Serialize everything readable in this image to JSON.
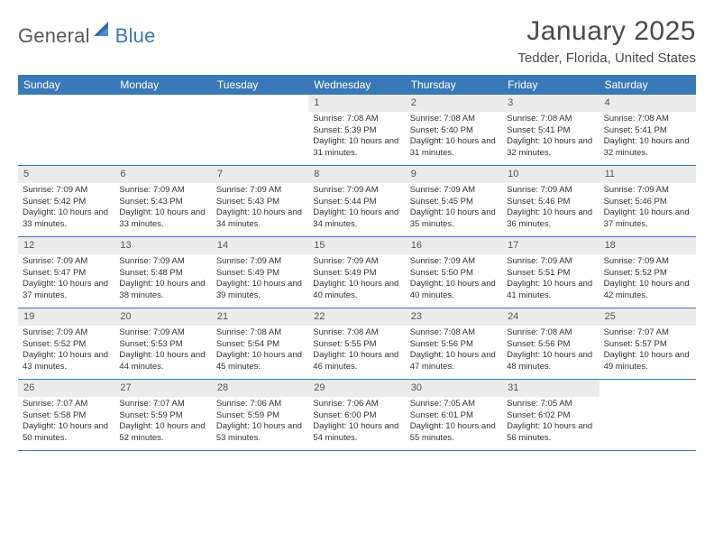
{
  "logo": {
    "general": "General",
    "blue": "Blue"
  },
  "title": "January 2025",
  "location": "Tedder, Florida, United States",
  "header_bg": "#3a79b7",
  "weekdays": [
    "Sunday",
    "Monday",
    "Tuesday",
    "Wednesday",
    "Thursday",
    "Friday",
    "Saturday"
  ],
  "weeks": [
    [
      {
        "n": "",
        "sr": "",
        "ss": "",
        "dl": ""
      },
      {
        "n": "",
        "sr": "",
        "ss": "",
        "dl": ""
      },
      {
        "n": "",
        "sr": "",
        "ss": "",
        "dl": ""
      },
      {
        "n": "1",
        "sr": "Sunrise: 7:08 AM",
        "ss": "Sunset: 5:39 PM",
        "dl": "Daylight: 10 hours and 31 minutes."
      },
      {
        "n": "2",
        "sr": "Sunrise: 7:08 AM",
        "ss": "Sunset: 5:40 PM",
        "dl": "Daylight: 10 hours and 31 minutes."
      },
      {
        "n": "3",
        "sr": "Sunrise: 7:08 AM",
        "ss": "Sunset: 5:41 PM",
        "dl": "Daylight: 10 hours and 32 minutes."
      },
      {
        "n": "4",
        "sr": "Sunrise: 7:08 AM",
        "ss": "Sunset: 5:41 PM",
        "dl": "Daylight: 10 hours and 32 minutes."
      }
    ],
    [
      {
        "n": "5",
        "sr": "Sunrise: 7:09 AM",
        "ss": "Sunset: 5:42 PM",
        "dl": "Daylight: 10 hours and 33 minutes."
      },
      {
        "n": "6",
        "sr": "Sunrise: 7:09 AM",
        "ss": "Sunset: 5:43 PM",
        "dl": "Daylight: 10 hours and 33 minutes."
      },
      {
        "n": "7",
        "sr": "Sunrise: 7:09 AM",
        "ss": "Sunset: 5:43 PM",
        "dl": "Daylight: 10 hours and 34 minutes."
      },
      {
        "n": "8",
        "sr": "Sunrise: 7:09 AM",
        "ss": "Sunset: 5:44 PM",
        "dl": "Daylight: 10 hours and 34 minutes."
      },
      {
        "n": "9",
        "sr": "Sunrise: 7:09 AM",
        "ss": "Sunset: 5:45 PM",
        "dl": "Daylight: 10 hours and 35 minutes."
      },
      {
        "n": "10",
        "sr": "Sunrise: 7:09 AM",
        "ss": "Sunset: 5:46 PM",
        "dl": "Daylight: 10 hours and 36 minutes."
      },
      {
        "n": "11",
        "sr": "Sunrise: 7:09 AM",
        "ss": "Sunset: 5:46 PM",
        "dl": "Daylight: 10 hours and 37 minutes."
      }
    ],
    [
      {
        "n": "12",
        "sr": "Sunrise: 7:09 AM",
        "ss": "Sunset: 5:47 PM",
        "dl": "Daylight: 10 hours and 37 minutes."
      },
      {
        "n": "13",
        "sr": "Sunrise: 7:09 AM",
        "ss": "Sunset: 5:48 PM",
        "dl": "Daylight: 10 hours and 38 minutes."
      },
      {
        "n": "14",
        "sr": "Sunrise: 7:09 AM",
        "ss": "Sunset: 5:49 PM",
        "dl": "Daylight: 10 hours and 39 minutes."
      },
      {
        "n": "15",
        "sr": "Sunrise: 7:09 AM",
        "ss": "Sunset: 5:49 PM",
        "dl": "Daylight: 10 hours and 40 minutes."
      },
      {
        "n": "16",
        "sr": "Sunrise: 7:09 AM",
        "ss": "Sunset: 5:50 PM",
        "dl": "Daylight: 10 hours and 40 minutes."
      },
      {
        "n": "17",
        "sr": "Sunrise: 7:09 AM",
        "ss": "Sunset: 5:51 PM",
        "dl": "Daylight: 10 hours and 41 minutes."
      },
      {
        "n": "18",
        "sr": "Sunrise: 7:09 AM",
        "ss": "Sunset: 5:52 PM",
        "dl": "Daylight: 10 hours and 42 minutes."
      }
    ],
    [
      {
        "n": "19",
        "sr": "Sunrise: 7:09 AM",
        "ss": "Sunset: 5:52 PM",
        "dl": "Daylight: 10 hours and 43 minutes."
      },
      {
        "n": "20",
        "sr": "Sunrise: 7:09 AM",
        "ss": "Sunset: 5:53 PM",
        "dl": "Daylight: 10 hours and 44 minutes."
      },
      {
        "n": "21",
        "sr": "Sunrise: 7:08 AM",
        "ss": "Sunset: 5:54 PM",
        "dl": "Daylight: 10 hours and 45 minutes."
      },
      {
        "n": "22",
        "sr": "Sunrise: 7:08 AM",
        "ss": "Sunset: 5:55 PM",
        "dl": "Daylight: 10 hours and 46 minutes."
      },
      {
        "n": "23",
        "sr": "Sunrise: 7:08 AM",
        "ss": "Sunset: 5:56 PM",
        "dl": "Daylight: 10 hours and 47 minutes."
      },
      {
        "n": "24",
        "sr": "Sunrise: 7:08 AM",
        "ss": "Sunset: 5:56 PM",
        "dl": "Daylight: 10 hours and 48 minutes."
      },
      {
        "n": "25",
        "sr": "Sunrise: 7:07 AM",
        "ss": "Sunset: 5:57 PM",
        "dl": "Daylight: 10 hours and 49 minutes."
      }
    ],
    [
      {
        "n": "26",
        "sr": "Sunrise: 7:07 AM",
        "ss": "Sunset: 5:58 PM",
        "dl": "Daylight: 10 hours and 50 minutes."
      },
      {
        "n": "27",
        "sr": "Sunrise: 7:07 AM",
        "ss": "Sunset: 5:59 PM",
        "dl": "Daylight: 10 hours and 52 minutes."
      },
      {
        "n": "28",
        "sr": "Sunrise: 7:06 AM",
        "ss": "Sunset: 5:59 PM",
        "dl": "Daylight: 10 hours and 53 minutes."
      },
      {
        "n": "29",
        "sr": "Sunrise: 7:06 AM",
        "ss": "Sunset: 6:00 PM",
        "dl": "Daylight: 10 hours and 54 minutes."
      },
      {
        "n": "30",
        "sr": "Sunrise: 7:05 AM",
        "ss": "Sunset: 6:01 PM",
        "dl": "Daylight: 10 hours and 55 minutes."
      },
      {
        "n": "31",
        "sr": "Sunrise: 7:05 AM",
        "ss": "Sunset: 6:02 PM",
        "dl": "Daylight: 10 hours and 56 minutes."
      },
      {
        "n": "",
        "sr": "",
        "ss": "",
        "dl": ""
      }
    ]
  ]
}
